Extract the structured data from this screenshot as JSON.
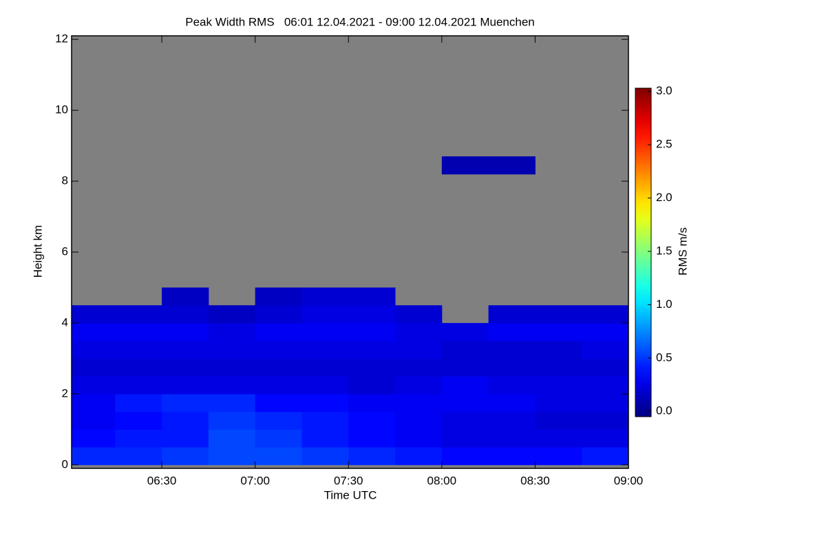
{
  "chart_data": {
    "type": "heatmap",
    "title": "Peak Width RMS   06:01 12.04.2021 - 09:00 12.04.2021 Muenchen",
    "xlabel": "Time UTC",
    "ylabel": "Height km",
    "colorbar_label": "RMS m/s",
    "xlim": [
      6.0167,
      9.0
    ],
    "xticks": [
      {
        "value": 6.5,
        "label": "06:30"
      },
      {
        "value": 7.0,
        "label": "07:00"
      },
      {
        "value": 7.5,
        "label": "07:30"
      },
      {
        "value": 8.0,
        "label": "08:00"
      },
      {
        "value": 8.5,
        "label": "08:30"
      },
      {
        "value": 9.0,
        "label": "09:00"
      }
    ],
    "ylim": [
      -0.1,
      12.1
    ],
    "yticks": [
      0,
      2,
      4,
      6,
      8,
      10,
      12
    ],
    "clim": [
      -0.05,
      3.03
    ],
    "cticks": [
      {
        "value": 0.0,
        "label": "0.0"
      },
      {
        "value": 0.5,
        "label": "0.5"
      },
      {
        "value": 1.0,
        "label": "1.0"
      },
      {
        "value": 1.5,
        "label": "1.5"
      },
      {
        "value": 2.0,
        "label": "2.0"
      },
      {
        "value": 2.5,
        "label": "2.5"
      },
      {
        "value": 3.0,
        "label": "3.0"
      }
    ],
    "colormap": "jet",
    "background": "#808080",
    "x_edges": [
      6.0167,
      6.25,
      6.5,
      6.75,
      7.0,
      7.25,
      7.5,
      7.75,
      8.0,
      8.25,
      8.5,
      8.75,
      9.0
    ],
    "y_edges": [
      0,
      0.5,
      1.0,
      1.5,
      2.0,
      2.5,
      3.0,
      3.5,
      4.0,
      4.5,
      5.0,
      8.2,
      8.7
    ],
    "z": [
      [
        0.45,
        0.45,
        0.5,
        0.55,
        0.55,
        0.5,
        0.45,
        0.4,
        0.35,
        0.35,
        0.35,
        0.4
      ],
      [
        0.35,
        0.4,
        0.4,
        0.55,
        0.5,
        0.4,
        0.35,
        0.3,
        0.25,
        0.25,
        0.25,
        0.25
      ],
      [
        0.3,
        0.35,
        0.4,
        0.5,
        0.45,
        0.4,
        0.35,
        0.3,
        0.25,
        0.25,
        0.2,
        0.2
      ],
      [
        0.3,
        0.4,
        0.45,
        0.45,
        0.35,
        0.35,
        0.3,
        0.3,
        0.3,
        0.3,
        0.25,
        0.25
      ],
      [
        0.25,
        0.25,
        0.25,
        0.25,
        0.25,
        0.25,
        0.2,
        0.25,
        0.3,
        0.25,
        0.25,
        0.25
      ],
      [
        0.2,
        0.2,
        0.2,
        0.2,
        0.2,
        0.2,
        0.2,
        0.2,
        0.2,
        0.2,
        0.2,
        0.2
      ],
      [
        0.25,
        0.25,
        0.25,
        0.25,
        0.25,
        0.25,
        0.25,
        0.25,
        0.2,
        0.2,
        0.2,
        0.25
      ],
      [
        0.3,
        0.3,
        0.3,
        0.25,
        0.3,
        0.3,
        0.3,
        0.25,
        0.25,
        0.3,
        0.3,
        0.3
      ],
      [
        0.2,
        0.2,
        0.2,
        0.15,
        0.2,
        0.25,
        0.25,
        0.2,
        null,
        0.2,
        0.2,
        0.2
      ],
      [
        null,
        null,
        0.15,
        null,
        0.15,
        0.2,
        0.2,
        null,
        null,
        null,
        null,
        null
      ],
      [
        null,
        null,
        null,
        null,
        null,
        null,
        null,
        null,
        null,
        null,
        null,
        null
      ],
      [
        null,
        null,
        null,
        null,
        null,
        null,
        null,
        null,
        0.1,
        0.1,
        null,
        null
      ]
    ]
  }
}
